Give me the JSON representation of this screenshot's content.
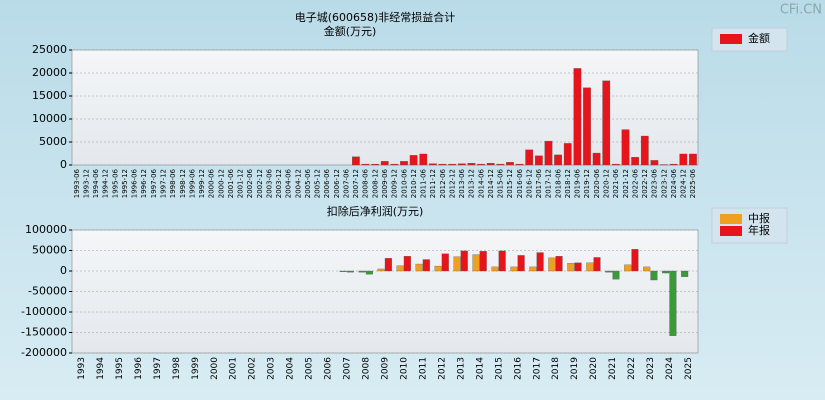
{
  "watermark": "CFi.CN",
  "chart_data": [
    {
      "type": "bar",
      "title": "电子城(600658)非经常损益合计",
      "y_label": "金额(万元)",
      "categories": [
        "1993-06",
        "1993-12",
        "1994-06",
        "1994-12",
        "1995-06",
        "1995-12",
        "1996-06",
        "1996-12",
        "1997-06",
        "1997-12",
        "1998-06",
        "1998-12",
        "1999-06",
        "1999-12",
        "2000-06",
        "2000-12",
        "2001-06",
        "2001-12",
        "2002-06",
        "2002-12",
        "2003-06",
        "2003-12",
        "2004-06",
        "2004-12",
        "2005-06",
        "2005-12",
        "2006-06",
        "2006-12",
        "2007-06",
        "2007-12",
        "2008-06",
        "2008-12",
        "2009-06",
        "2009-12",
        "2010-06",
        "2010-12",
        "2011-06",
        "2011-12",
        "2012-06",
        "2012-12",
        "2013-06",
        "2013-12",
        "2014-06",
        "2014-12",
        "2015-06",
        "2015-12",
        "2016-06",
        "2016-12",
        "2017-06",
        "2017-12",
        "2018-06",
        "2018-12",
        "2019-06",
        "2019-12",
        "2020-06",
        "2020-12",
        "2021-06",
        "2021-12",
        "2022-06",
        "2022-12",
        "2023-06",
        "2023-12",
        "2024-06",
        "2024-12",
        "2025-06"
      ],
      "series": [
        {
          "name": "金额",
          "color": "#e8141b",
          "values": [
            null,
            null,
            null,
            null,
            null,
            null,
            null,
            null,
            null,
            null,
            null,
            null,
            null,
            null,
            null,
            null,
            null,
            null,
            null,
            null,
            null,
            null,
            null,
            null,
            null,
            null,
            null,
            null,
            null,
            1800,
            200,
            200,
            800,
            200,
            800,
            2100,
            2400,
            300,
            200,
            200,
            300,
            400,
            200,
            400,
            200,
            600,
            200,
            3300,
            2000,
            5200,
            2200,
            4700,
            21000,
            16800,
            2600,
            18300,
            200,
            7700,
            1700,
            6300,
            1000,
            100,
            200,
            2400,
            2400
          ]
        }
      ],
      "ylim": [
        0,
        25000
      ],
      "yticks": [
        0,
        5000,
        10000,
        15000,
        20000,
        25000
      ],
      "grid": true
    },
    {
      "type": "grouped_bar",
      "title": "扣除后净利润(万元)",
      "categories": [
        "1993",
        "1994",
        "1995",
        "1996",
        "1997",
        "1998",
        "1999",
        "2000",
        "2001",
        "2002",
        "2003",
        "2004",
        "2005",
        "2006",
        "2007",
        "2008",
        "2009",
        "2010",
        "2011",
        "2012",
        "2013",
        "2014",
        "2015",
        "2016",
        "2017",
        "2018",
        "2019",
        "2020",
        "2021",
        "2022",
        "2023",
        "2024",
        "2025"
      ],
      "negative_color": "#3a9a3a",
      "series": [
        {
          "name": "中报",
          "color": "#f0a020",
          "values": [
            null,
            null,
            null,
            null,
            null,
            null,
            null,
            null,
            null,
            null,
            null,
            null,
            null,
            null,
            -2000,
            -3000,
            5000,
            13000,
            17000,
            12000,
            35000,
            40000,
            10000,
            10000,
            10000,
            32000,
            19000,
            20000,
            -3000,
            15000,
            10000,
            -5000,
            -14000
          ]
        },
        {
          "name": "年报",
          "color": "#e8141b",
          "values": [
            null,
            null,
            null,
            null,
            null,
            null,
            null,
            null,
            null,
            null,
            null,
            null,
            null,
            null,
            -3000,
            -8000,
            31000,
            36000,
            28000,
            42000,
            49000,
            48000,
            49000,
            38000,
            45000,
            36000,
            20000,
            33000,
            -20000,
            53000,
            -22000,
            -158000,
            null
          ]
        }
      ],
      "ylim": [
        -200000,
        100000
      ],
      "yticks": [
        -200000,
        -150000,
        -100000,
        -50000,
        0,
        50000,
        100000
      ],
      "grid": true
    }
  ]
}
